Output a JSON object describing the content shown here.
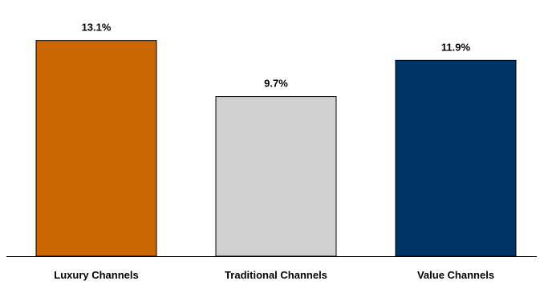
{
  "chart_data": {
    "type": "bar",
    "categories": [
      "Luxury Channels",
      "Traditional Channels",
      "Value Channels"
    ],
    "values": [
      13.1,
      9.7,
      11.9
    ],
    "value_labels": [
      "13.1%",
      "9.7%",
      "11.9%"
    ],
    "colors": [
      "#CC6600",
      "#D0D0D0",
      "#003366"
    ],
    "title": "",
    "xlabel": "",
    "ylabel": "",
    "ylim": [
      0,
      14.3
    ],
    "grid": false,
    "legend": "none"
  }
}
